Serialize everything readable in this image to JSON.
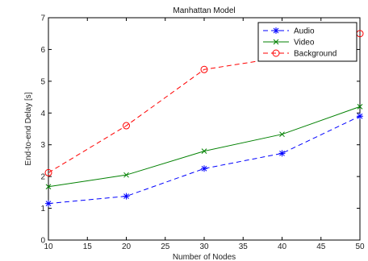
{
  "chart_data": {
    "type": "line",
    "title": "Manhattan Model",
    "xlabel": "Number of Nodes",
    "ylabel": "End-to-end Delay [s]",
    "x": [
      10,
      20,
      30,
      40,
      50
    ],
    "xlim": [
      10,
      50
    ],
    "ylim": [
      0,
      7
    ],
    "xticks": [
      10,
      15,
      20,
      25,
      30,
      35,
      40,
      45,
      50
    ],
    "yticks": [
      0,
      1,
      2,
      3,
      4,
      5,
      6,
      7
    ],
    "grid": false,
    "legend_position": "top-right",
    "series": [
      {
        "name": "Audio",
        "values": [
          1.15,
          1.38,
          2.25,
          2.73,
          3.9
        ],
        "color": "#0000ff",
        "dash": "6,4",
        "marker": "star"
      },
      {
        "name": "Video",
        "values": [
          1.68,
          2.05,
          2.8,
          3.33,
          4.2
        ],
        "color": "#008000",
        "dash": "",
        "marker": "x"
      },
      {
        "name": "Background",
        "values": [
          2.12,
          3.6,
          5.37,
          5.75,
          6.5
        ],
        "color": "#ff0000",
        "dash": "6,4",
        "marker": "circle"
      }
    ]
  }
}
